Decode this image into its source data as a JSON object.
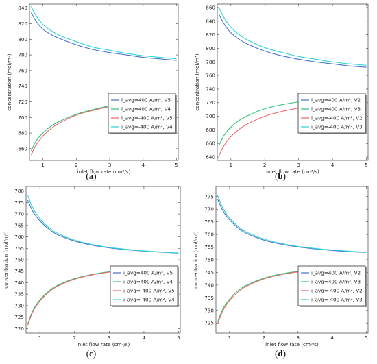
{
  "chart_data": [
    {
      "type": "line",
      "caption": "a",
      "xlabel": "inlet flow rate (cm³/s)",
      "ylabel": "concentration (mol/m³)",
      "xlim": [
        0.6,
        5.05
      ],
      "ylim": [
        645,
        845
      ],
      "xticks": [
        "1",
        "2",
        "3",
        "4",
        "5"
      ],
      "yticks": [
        "660",
        "680",
        "700",
        "720",
        "740",
        "760",
        "780",
        "800",
        "820",
        "840"
      ],
      "legend_position": "lower-right",
      "series": [
        {
          "name": "i_avg=400 A/m², V5",
          "color": "#4a6fd1",
          "x": [
            0.65,
            0.8,
            1.0,
            1.25,
            1.5,
            2.0,
            2.5,
            3.0,
            3.5,
            4.0,
            4.5,
            5.0
          ],
          "y": [
            834,
            823,
            813,
            806,
            801,
            793,
            787,
            783,
            780,
            777,
            775,
            773
          ]
        },
        {
          "name": "i_avg=400 A/m², V4",
          "color": "#2ec27a",
          "x": [
            0.65,
            0.8,
            1.0,
            1.25,
            1.5,
            2.0,
            2.5,
            3.0,
            3.5,
            4.0,
            4.5,
            5.0
          ],
          "y": [
            657,
            670,
            680,
            689,
            695,
            704,
            710,
            715,
            718,
            721,
            723,
            726
          ]
        },
        {
          "name": "i_avg=-400 A/m², V5",
          "color": "#f06464",
          "x": [
            0.65,
            0.8,
            1.0,
            1.25,
            1.5,
            2.0,
            2.5,
            3.0,
            3.5,
            4.0,
            4.5,
            5.0
          ],
          "y": [
            652,
            665,
            676,
            686,
            693,
            703,
            709,
            714,
            718,
            721,
            723,
            725
          ]
        },
        {
          "name": "i_avg=-400 A/m², V4",
          "color": "#2ad6d6",
          "x": [
            0.65,
            0.8,
            1.0,
            1.25,
            1.5,
            2.0,
            2.5,
            3.0,
            3.5,
            4.0,
            4.5,
            5.0
          ],
          "y": [
            842,
            830,
            819,
            811,
            805,
            797,
            790,
            786,
            782,
            779,
            777,
            775
          ]
        }
      ]
    },
    {
      "type": "line",
      "caption": "b",
      "xlabel": "inlet flow rate (cm³/s)",
      "ylabel": "concentration (mol/m³)",
      "xlim": [
        0.6,
        5.05
      ],
      "ylim": [
        635,
        865
      ],
      "xticks": [
        "1",
        "2",
        "3",
        "4",
        "5"
      ],
      "yticks": [
        "640",
        "660",
        "680",
        "700",
        "720",
        "740",
        "760",
        "780",
        "800",
        "820",
        "840",
        "860"
      ],
      "legend_position": "lower-right",
      "series": [
        {
          "name": "i_avg=400 A/m², V2",
          "color": "#4a6fd1",
          "x": [
            0.65,
            0.8,
            1.0,
            1.25,
            1.5,
            2.0,
            2.5,
            3.0,
            3.5,
            4.0,
            4.5,
            5.0
          ],
          "y": [
            850,
            836,
            823,
            813,
            806,
            796,
            789,
            784,
            780,
            777,
            774,
            772
          ]
        },
        {
          "name": "i_avg=400 A/m², V3",
          "color": "#2ec27a",
          "x": [
            0.65,
            0.8,
            1.0,
            1.25,
            1.5,
            2.0,
            2.5,
            3.0,
            3.5,
            4.0,
            4.5,
            5.0
          ],
          "y": [
            657,
            672,
            684,
            694,
            701,
            711,
            717,
            721,
            724,
            726,
            727,
            728
          ]
        },
        {
          "name": "i_avg=-400 A/m², V2",
          "color": "#f06464",
          "x": [
            0.65,
            0.8,
            1.0,
            1.25,
            1.5,
            2.0,
            2.5,
            3.0,
            3.5,
            4.0,
            4.5,
            5.0
          ],
          "y": [
            642,
            657,
            670,
            681,
            689,
            700,
            707,
            712,
            716,
            719,
            721,
            723
          ]
        },
        {
          "name": "i_avg=-400 A/m², V3",
          "color": "#2ad6d6",
          "x": [
            0.65,
            0.8,
            1.0,
            1.25,
            1.5,
            2.0,
            2.5,
            3.0,
            3.5,
            4.0,
            4.5,
            5.0
          ],
          "y": [
            860,
            845,
            831,
            820,
            812,
            801,
            794,
            788,
            784,
            780,
            777,
            775
          ]
        }
      ]
    },
    {
      "type": "line",
      "caption": "c",
      "xlabel": "inlet flow rate (cm³/s)",
      "ylabel": "concentration (mol/m³)",
      "xlim": [
        0.6,
        5.05
      ],
      "ylim": [
        718,
        782
      ],
      "xticks": [
        "1",
        "2",
        "3",
        "4",
        "5"
      ],
      "yticks": [
        "720",
        "725",
        "730",
        "735",
        "740",
        "745",
        "750",
        "755",
        "760",
        "765",
        "770",
        "775",
        "780"
      ],
      "legend_position": "lower-right",
      "series": [
        {
          "name": "i_avg=400 A/m², V5",
          "color": "#4a6fd1",
          "x": [
            0.65,
            0.8,
            1.0,
            1.25,
            1.5,
            2.0,
            2.5,
            3.0,
            3.5,
            4.0,
            4.5,
            5.0
          ],
          "y": [
            776,
            771,
            767,
            763.5,
            761,
            758.2,
            756.4,
            755.2,
            754.4,
            753.8,
            753.3,
            752.9
          ]
        },
        {
          "name": "i_avg=400 A/m², V4",
          "color": "#2ec27a",
          "x": [
            0.65,
            0.8,
            1.0,
            1.25,
            1.5,
            2.0,
            2.5,
            3.0,
            3.5,
            4.0,
            4.5,
            5.0
          ],
          "y": [
            722,
            728,
            732.5,
            736.3,
            738.8,
            741.8,
            743.6,
            744.8,
            745.6,
            746.2,
            746.7,
            747
          ]
        },
        {
          "name": "i_avg=-400 A/m², V5",
          "color": "#f06464",
          "x": [
            0.65,
            0.8,
            1.0,
            1.25,
            1.5,
            2.0,
            2.5,
            3.0,
            3.5,
            4.0,
            4.5,
            5.0
          ],
          "y": [
            721.5,
            727.5,
            732,
            735.8,
            738.4,
            741.5,
            743.4,
            744.6,
            745.5,
            746.1,
            746.6,
            746.9
          ]
        },
        {
          "name": "i_avg=-400 A/m², V4",
          "color": "#2ad6d6",
          "x": [
            0.65,
            0.8,
            1.0,
            1.25,
            1.5,
            2.0,
            2.5,
            3.0,
            3.5,
            4.0,
            4.5,
            5.0
          ],
          "y": [
            778,
            772.5,
            768,
            764.2,
            761.6,
            758.6,
            756.7,
            755.4,
            754.6,
            753.9,
            753.4,
            753
          ]
        }
      ]
    },
    {
      "type": "line",
      "caption": "d",
      "xlabel": "inlet flow rate (cm³/s)",
      "ylabel": "concentration (mol/m³)",
      "xlim": [
        0.6,
        5.05
      ],
      "ylim": [
        721,
        779
      ],
      "xticks": [
        "1",
        "2",
        "3",
        "4",
        "5"
      ],
      "yticks": [
        "725",
        "730",
        "735",
        "740",
        "745",
        "750",
        "755",
        "760",
        "765",
        "770",
        "775"
      ],
      "legend_position": "lower-right",
      "series": [
        {
          "name": "i_avg=400 A/m², V2",
          "color": "#4a6fd1",
          "x": [
            0.65,
            0.8,
            1.0,
            1.25,
            1.5,
            2.0,
            2.5,
            3.0,
            3.5,
            4.0,
            4.5,
            5.0
          ],
          "y": [
            774,
            769.5,
            765.8,
            762.6,
            760.4,
            757.8,
            756.2,
            755.1,
            754.3,
            753.7,
            753.2,
            752.9
          ]
        },
        {
          "name": "i_avg=400 A/m², V3",
          "color": "#2ec27a",
          "x": [
            0.65,
            0.8,
            1.0,
            1.25,
            1.5,
            2.0,
            2.5,
            3.0,
            3.5,
            4.0,
            4.5,
            5.0
          ],
          "y": [
            725.5,
            730.5,
            734.5,
            737.8,
            740,
            742.7,
            744.4,
            745.4,
            746.1,
            746.6,
            747,
            747.2
          ]
        },
        {
          "name": "i_avg=-400 A/m², V2",
          "color": "#f06464",
          "x": [
            0.65,
            0.8,
            1.0,
            1.25,
            1.5,
            2.0,
            2.5,
            3.0,
            3.5,
            4.0,
            4.5,
            5.0
          ],
          "y": [
            724.5,
            729.8,
            733.9,
            737.3,
            739.6,
            742.4,
            744.1,
            745.2,
            745.9,
            746.5,
            746.9,
            747.1
          ]
        },
        {
          "name": "i_avg=-400 A/m², V3",
          "color": "#2ad6d6",
          "x": [
            0.65,
            0.8,
            1.0,
            1.25,
            1.5,
            2.0,
            2.5,
            3.0,
            3.5,
            4.0,
            4.5,
            5.0
          ],
          "y": [
            775.5,
            770.5,
            766.5,
            763.2,
            760.9,
            758.2,
            756.5,
            755.3,
            754.5,
            753.9,
            753.4,
            753
          ]
        }
      ]
    }
  ]
}
